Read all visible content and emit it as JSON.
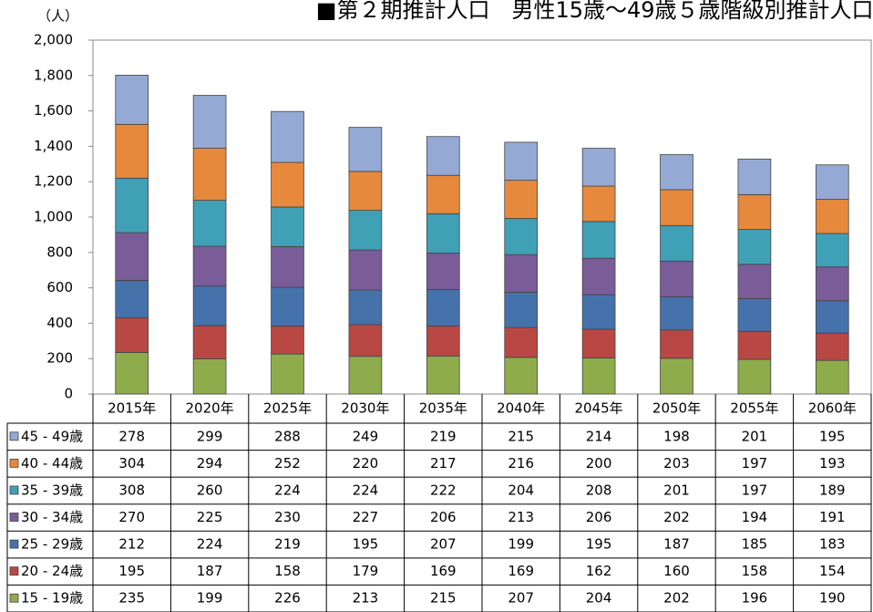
{
  "chart_data": {
    "type": "stacked-bar-table",
    "title": "■第２期推計人口　男性15歳～49歳５歳階級別推計人口■",
    "y_unit": "（人）",
    "categories": [
      "2015年",
      "2020年",
      "2025年",
      "2030年",
      "2035年",
      "2040年",
      "2045年",
      "2050年",
      "2055年",
      "2060年"
    ],
    "series": [
      {
        "name": "15 - 19歳",
        "color": "#8fac4c",
        "values": [
          235,
          199,
          226,
          213,
          215,
          207,
          204,
          202,
          196,
          190
        ]
      },
      {
        "name": "20 - 24歳",
        "color": "#b94744",
        "values": [
          195,
          187,
          158,
          179,
          169,
          169,
          162,
          160,
          158,
          154
        ]
      },
      {
        "name": "25 - 29歳",
        "color": "#4572aa",
        "values": [
          212,
          224,
          219,
          195,
          207,
          199,
          195,
          187,
          185,
          183
        ]
      },
      {
        "name": "30 - 34歳",
        "color": "#7a5c98",
        "values": [
          270,
          225,
          230,
          227,
          206,
          213,
          206,
          202,
          194,
          191
        ]
      },
      {
        "name": "35 - 39歳",
        "color": "#3fa0b6",
        "values": [
          308,
          260,
          224,
          224,
          222,
          204,
          208,
          201,
          197,
          189
        ]
      },
      {
        "name": "40 - 44歳",
        "color": "#e6893d",
        "values": [
          304,
          294,
          252,
          220,
          217,
          216,
          200,
          203,
          197,
          193
        ]
      },
      {
        "name": "45 - 49歳",
        "color": "#94aad4",
        "values": [
          278,
          299,
          288,
          249,
          219,
          215,
          214,
          198,
          201,
          195
        ]
      }
    ],
    "ylim": [
      0,
      2000
    ],
    "yticks": [
      0,
      200,
      400,
      600,
      800,
      {
        "value": 1000,
        "label": "1,000"
      },
      {
        "value": 1200,
        "label": "1,200"
      },
      {
        "value": 1400,
        "label": "1,400"
      },
      {
        "value": 1600,
        "label": "1,600"
      },
      {
        "value": 1800,
        "label": "1,800"
      },
      {
        "value": 2000,
        "label": "2,000"
      }
    ],
    "grid": false
  }
}
